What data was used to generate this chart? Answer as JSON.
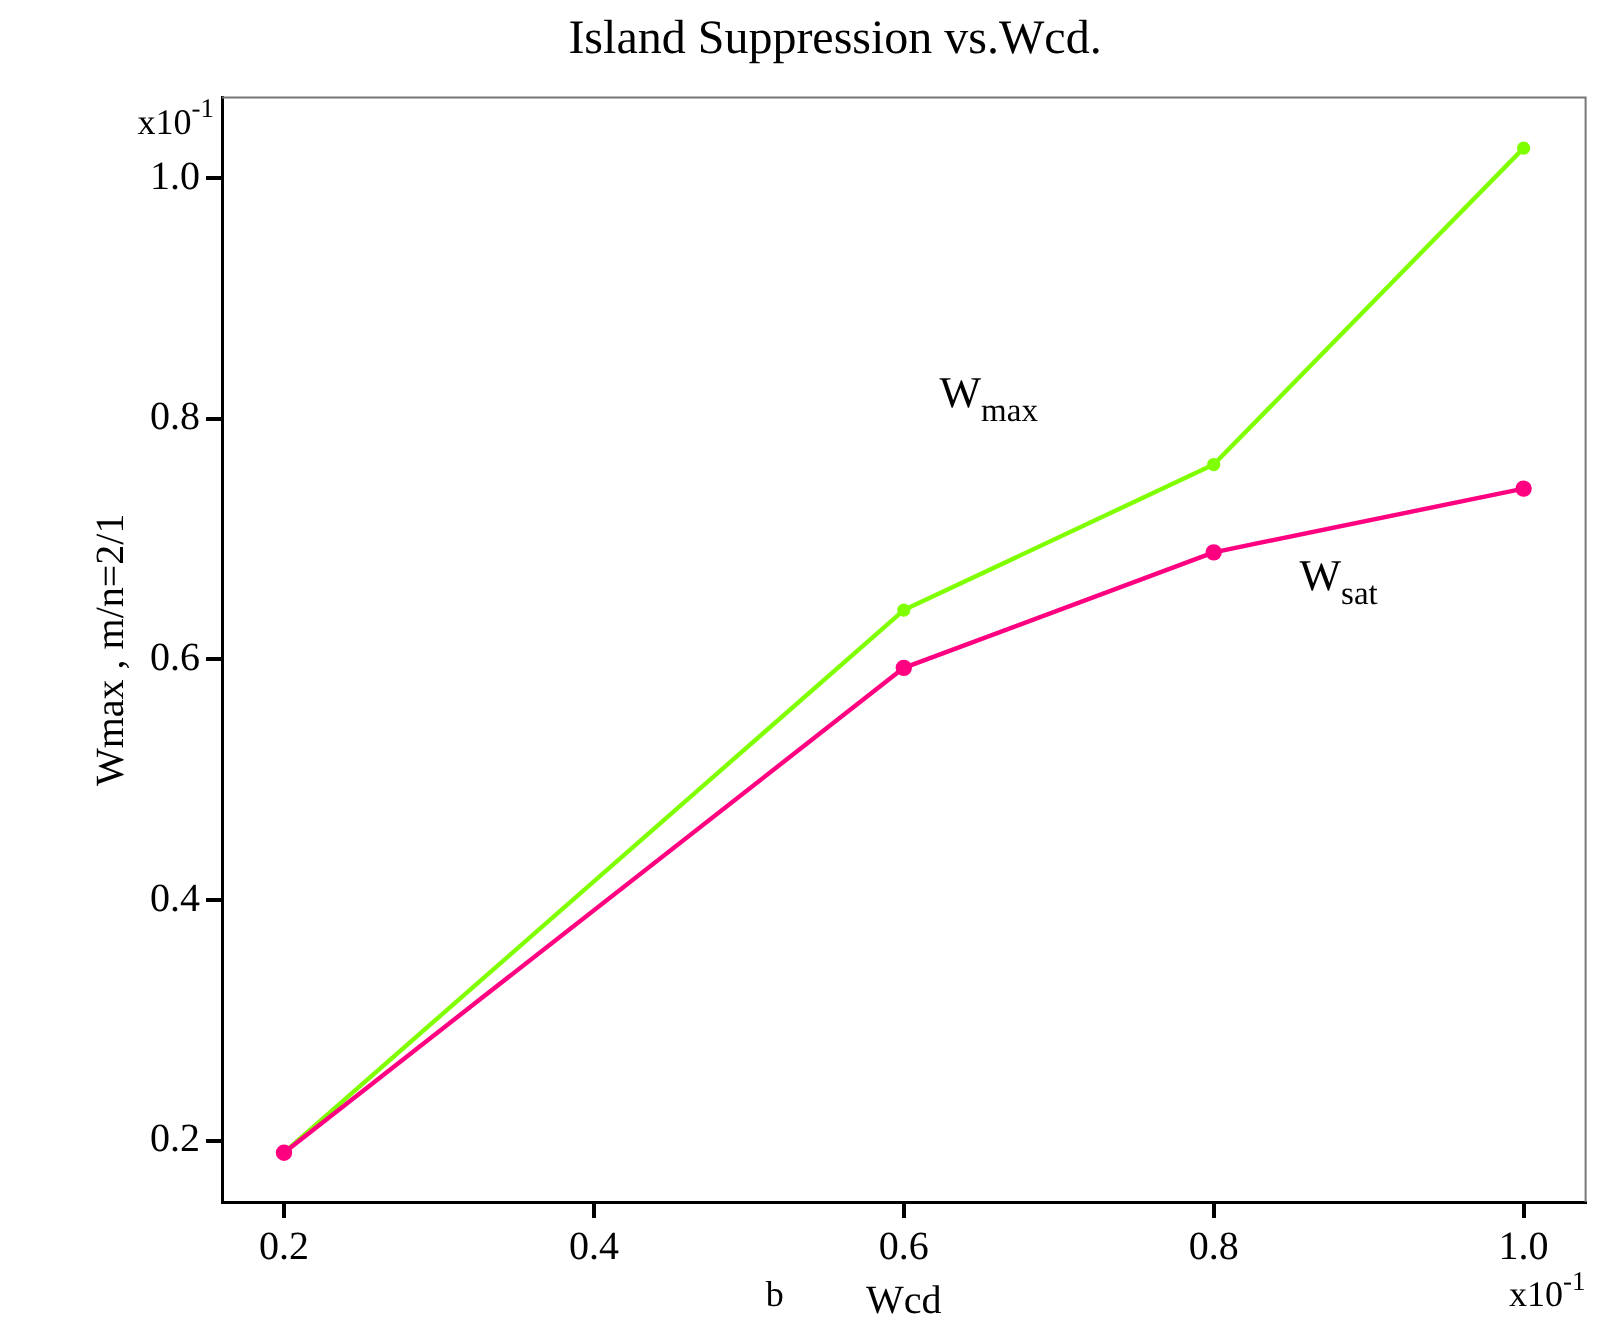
{
  "chart_data": {
    "type": "line",
    "title": "Island Suppression vs.Wcd.",
    "xlabel": "Wcd",
    "ylabel": "Wmax , m/n=2/1",
    "x": [
      0.2,
      0.6,
      0.8,
      1.0
    ],
    "series": [
      {
        "name": "W$_{max}$",
        "color": "#7fff00",
        "values": [
          0.19,
          0.641,
          0.762,
          1.025
        ]
      },
      {
        "name": "W$_{sat}$",
        "color": "#ff0080",
        "values": [
          0.19,
          0.593,
          0.689,
          0.742
        ]
      }
    ],
    "xlim": [
      0.16,
      1.04
    ],
    "xticks": [
      {
        "value": 0.2,
        "label": "0.2"
      },
      {
        "value": 0.4,
        "label": "0.4"
      },
      {
        "value": 0.6,
        "label": "0.6"
      },
      {
        "value": 0.8,
        "label": "0.8"
      },
      {
        "value": 1.0,
        "label": "1.0"
      }
    ],
    "ylim": [
      0.149,
      1.067
    ],
    "yticks": [
      {
        "value": 0.2,
        "label": "0.2"
      },
      {
        "value": 0.4,
        "label": "0.4"
      },
      {
        "value": 0.6,
        "label": "0.6"
      },
      {
        "value": 0.8,
        "label": "0.8"
      },
      {
        "value": 1.0,
        "label": "1.0"
      }
    ],
    "marker": "circle",
    "line_style": "solid",
    "legend": false,
    "annotations": [
      "x10$^{-1}$",
      "x10$^{-1}$",
      "b"
    ]
  }
}
